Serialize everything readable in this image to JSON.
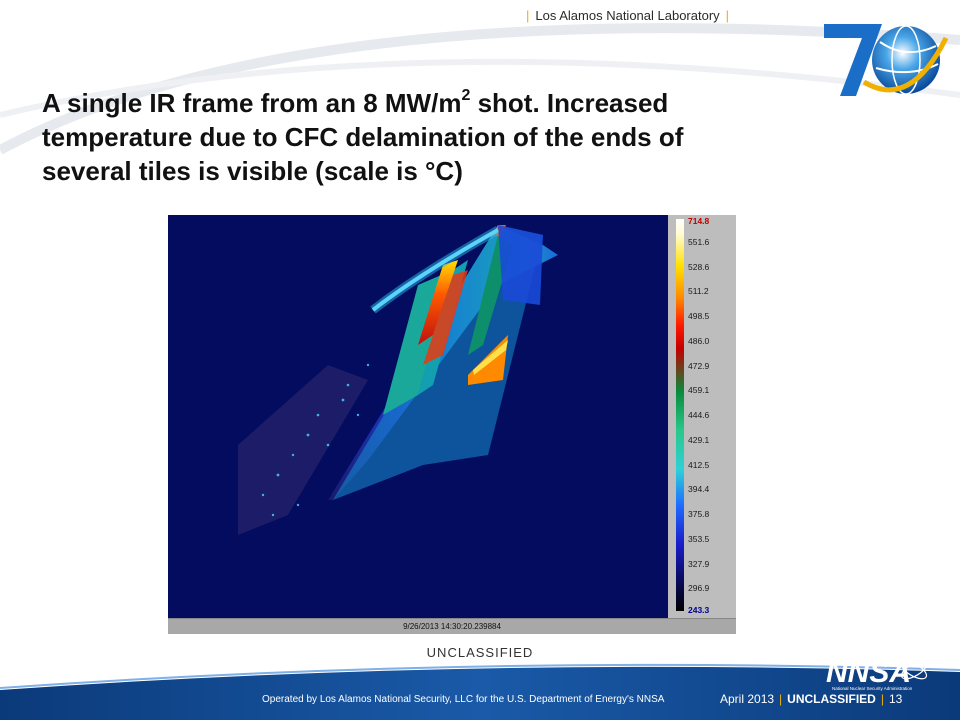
{
  "header": {
    "lab_name": "Los Alamos National Laboratory"
  },
  "title": {
    "line1_pre": "A single IR frame from an 8 MW/m",
    "line1_sup": "2",
    "line1_post": " shot. Increased",
    "line2": "temperature due to CFC delamination of the ends of",
    "line3": "several tiles is visible (scale is °C)"
  },
  "ir_image": {
    "timestamp": "9/26/2013 14:30:20.239884",
    "scale_max": "714.8",
    "scale_min": "243.3",
    "scale_ticks": [
      "551.6",
      "528.6",
      "511.2",
      "498.5",
      "486.0",
      "472.9",
      "459.1",
      "444.6",
      "429.1",
      "412.5",
      "394.4",
      "375.8",
      "353.5",
      "327.9",
      "296.9"
    ]
  },
  "classification": "UNCLASSIFIED",
  "footer": {
    "operated_by": "Operated by Los Alamos National Security, LLC for the U.S. Department of Energy's NNSA",
    "date": "April 2013",
    "classification": "UNCLASSIFIED",
    "page_number": "13",
    "nnsa_logo_text": "NNSA",
    "nnsa_full_name": "National Nuclear Security Administration"
  },
  "colors": {
    "footer_blue": "#0b3a7a",
    "accent_gold": "#f0b000",
    "ir_background": "#030c5e"
  }
}
